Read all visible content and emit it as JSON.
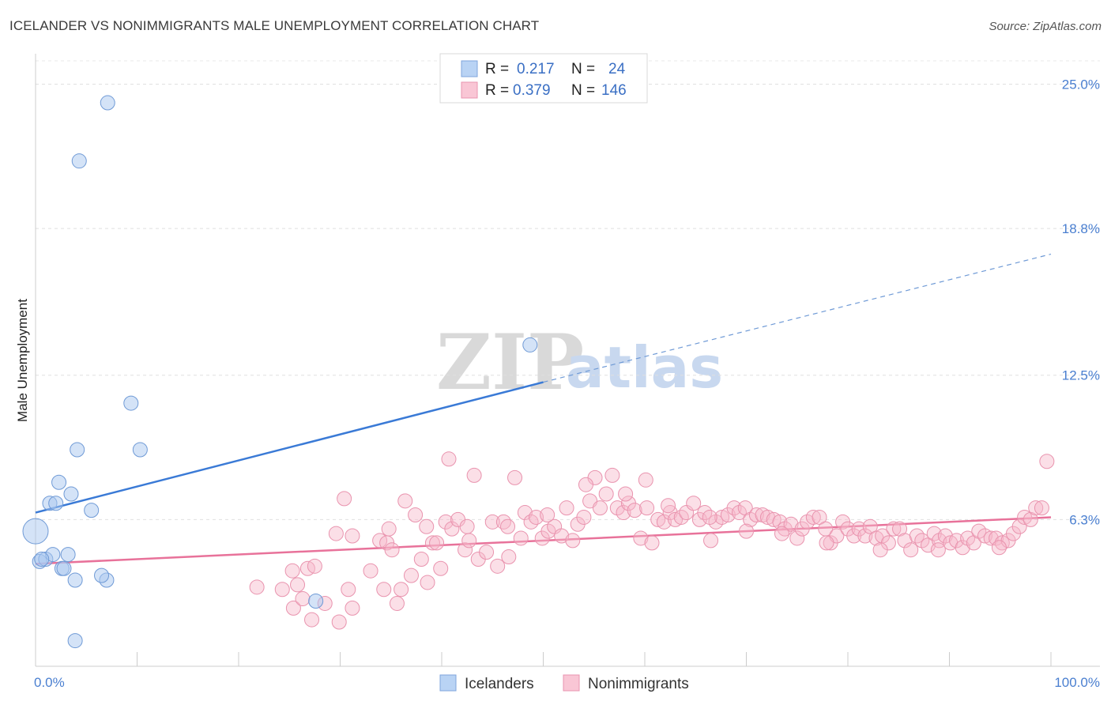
{
  "header": {
    "title": "ICELANDER VS NONIMMIGRANTS MALE UNEMPLOYMENT CORRELATION CHART",
    "source": "Source: ZipAtlas.com"
  },
  "watermark": {
    "zip": "ZIP",
    "atlas": "atlas"
  },
  "legend": {
    "rows": [
      {
        "r_label": "R =",
        "r_value": "0.217",
        "n_label": "N =",
        "n_value": "24",
        "color": "#a9c8f0"
      },
      {
        "r_label": "R =",
        "r_value": "0.379",
        "n_label": "N =",
        "n_value": "146",
        "color": "#f6b8ca"
      }
    ]
  },
  "bottom_legend": {
    "items": [
      {
        "label": "Icelanders",
        "color": "#a9c8f0"
      },
      {
        "label": "Nonimmigrants",
        "color": "#f6b8ca"
      }
    ]
  },
  "chart_data": {
    "type": "scatter",
    "xlabel": "",
    "ylabel": "Male Unemployment",
    "xlim": [
      0,
      100
    ],
    "ylim": [
      0,
      26
    ],
    "x_tick_labels": [
      "0.0%",
      "100.0%"
    ],
    "y_ticks": [
      {
        "value": 25.0,
        "label": "25.0%"
      },
      {
        "value": 18.8,
        "label": "18.8%"
      },
      {
        "value": 12.5,
        "label": "12.5%"
      },
      {
        "value": 6.3,
        "label": "6.3%"
      }
    ],
    "grid": true,
    "colors": {
      "icelanders": "#3a7ad6",
      "nonimmigrants": "#e8729a"
    },
    "series": [
      {
        "name": "Icelanders",
        "trend": {
          "x0": 0,
          "y0": 6.6,
          "x1": 50,
          "y1": 12.2,
          "x_end": 100,
          "y_end": 17.7
        },
        "points": [
          [
            7.1,
            24.2,
            9
          ],
          [
            4.3,
            21.7,
            9
          ],
          [
            0.0,
            5.8,
            16
          ],
          [
            0.4,
            4.5,
            9
          ],
          [
            1.0,
            4.6,
            9
          ],
          [
            1.7,
            4.8,
            9
          ],
          [
            2.6,
            4.2,
            9
          ],
          [
            2.8,
            4.2,
            9
          ],
          [
            3.2,
            4.8,
            9
          ],
          [
            3.9,
            3.7,
            9
          ],
          [
            7.0,
            3.7,
            9
          ],
          [
            6.5,
            3.9,
            9
          ],
          [
            2.3,
            7.9,
            9
          ],
          [
            1.4,
            7.0,
            9
          ],
          [
            2.0,
            7.0,
            9
          ],
          [
            3.5,
            7.4,
            9
          ],
          [
            5.5,
            6.7,
            9
          ],
          [
            4.1,
            9.3,
            9
          ],
          [
            10.3,
            9.3,
            9
          ],
          [
            9.4,
            11.3,
            9
          ],
          [
            48.7,
            13.8,
            9
          ],
          [
            27.6,
            2.8,
            9
          ],
          [
            3.9,
            1.1,
            9
          ],
          [
            0.6,
            4.6,
            9
          ]
        ]
      },
      {
        "name": "Nonimmigrants",
        "trend": {
          "x0": 0,
          "y0": 4.4,
          "x1": 100,
          "y1": 6.4
        },
        "points": [
          [
            21.8,
            3.4
          ],
          [
            24.3,
            3.3
          ],
          [
            25.4,
            2.5
          ],
          [
            25.8,
            3.5
          ],
          [
            26.3,
            2.9
          ],
          [
            26.8,
            4.2
          ],
          [
            27.2,
            2.0
          ],
          [
            28.5,
            2.7
          ],
          [
            29.6,
            5.7
          ],
          [
            29.9,
            1.9
          ],
          [
            30.4,
            7.2
          ],
          [
            30.8,
            3.3
          ],
          [
            31.2,
            2.5
          ],
          [
            33.0,
            4.1
          ],
          [
            33.9,
            5.4
          ],
          [
            34.3,
            3.3
          ],
          [
            34.6,
            5.3
          ],
          [
            35.1,
            5.0
          ],
          [
            35.6,
            2.7
          ],
          [
            36.0,
            3.3
          ],
          [
            36.4,
            7.1
          ],
          [
            37.0,
            3.9
          ],
          [
            37.4,
            6.5
          ],
          [
            38.0,
            4.6
          ],
          [
            38.6,
            3.6
          ],
          [
            39.1,
            5.3
          ],
          [
            39.5,
            5.3
          ],
          [
            39.9,
            4.2
          ],
          [
            40.4,
            6.2
          ],
          [
            41.0,
            5.9
          ],
          [
            41.6,
            6.3
          ],
          [
            42.3,
            5.0
          ],
          [
            42.7,
            5.4
          ],
          [
            43.6,
            4.6
          ],
          [
            44.4,
            4.9
          ],
          [
            45.0,
            6.2
          ],
          [
            45.5,
            4.3
          ],
          [
            46.1,
            6.2
          ],
          [
            46.6,
            4.7
          ],
          [
            47.2,
            8.1
          ],
          [
            47.8,
            5.5
          ],
          [
            48.2,
            6.6
          ],
          [
            48.8,
            6.2
          ],
          [
            49.3,
            6.4
          ],
          [
            49.9,
            5.5
          ],
          [
            50.5,
            5.8
          ],
          [
            51.1,
            6.0
          ],
          [
            51.8,
            5.6
          ],
          [
            52.3,
            6.8
          ],
          [
            52.9,
            5.4
          ],
          [
            53.4,
            6.1
          ],
          [
            54.0,
            6.4
          ],
          [
            54.6,
            7.1
          ],
          [
            55.1,
            8.1
          ],
          [
            55.6,
            6.8
          ],
          [
            56.2,
            7.4
          ],
          [
            56.8,
            8.2
          ],
          [
            57.3,
            6.8
          ],
          [
            57.9,
            6.6
          ],
          [
            58.4,
            7.0
          ],
          [
            59.0,
            6.7
          ],
          [
            59.6,
            5.5
          ],
          [
            60.2,
            6.8
          ],
          [
            60.7,
            5.3
          ],
          [
            61.3,
            6.3
          ],
          [
            61.9,
            6.2
          ],
          [
            62.5,
            6.6
          ],
          [
            63.0,
            6.3
          ],
          [
            63.6,
            6.4
          ],
          [
            64.1,
            6.6
          ],
          [
            64.8,
            7.0
          ],
          [
            65.4,
            6.3
          ],
          [
            65.9,
            6.6
          ],
          [
            66.5,
            5.4
          ],
          [
            67.0,
            6.2
          ],
          [
            67.6,
            6.4
          ],
          [
            68.2,
            6.5
          ],
          [
            68.8,
            6.8
          ],
          [
            69.3,
            6.6
          ],
          [
            69.9,
            6.8
          ],
          [
            70.4,
            6.3
          ],
          [
            71.0,
            6.5
          ],
          [
            71.6,
            6.5
          ],
          [
            72.1,
            6.4
          ],
          [
            72.7,
            6.3
          ],
          [
            73.3,
            6.2
          ],
          [
            73.8,
            5.9
          ],
          [
            74.4,
            6.1
          ],
          [
            75.0,
            5.5
          ],
          [
            75.5,
            5.9
          ],
          [
            76.0,
            6.2
          ],
          [
            76.6,
            6.4
          ],
          [
            77.2,
            6.4
          ],
          [
            77.8,
            5.9
          ],
          [
            78.3,
            5.3
          ],
          [
            78.9,
            5.6
          ],
          [
            79.5,
            6.2
          ],
          [
            80.0,
            5.9
          ],
          [
            80.6,
            5.6
          ],
          [
            81.1,
            5.9
          ],
          [
            81.7,
            5.6
          ],
          [
            82.2,
            6.0
          ],
          [
            82.8,
            5.5
          ],
          [
            83.4,
            5.6
          ],
          [
            84.0,
            5.3
          ],
          [
            84.5,
            5.9
          ],
          [
            85.1,
            5.9
          ],
          [
            85.6,
            5.4
          ],
          [
            86.2,
            5.0
          ],
          [
            86.8,
            5.6
          ],
          [
            87.3,
            5.4
          ],
          [
            87.9,
            5.2
          ],
          [
            88.5,
            5.7
          ],
          [
            89.0,
            5.4
          ],
          [
            89.6,
            5.6
          ],
          [
            90.1,
            5.3
          ],
          [
            90.7,
            5.4
          ],
          [
            91.3,
            5.1
          ],
          [
            91.8,
            5.5
          ],
          [
            92.4,
            5.3
          ],
          [
            92.9,
            5.8
          ],
          [
            93.5,
            5.6
          ],
          [
            94.1,
            5.5
          ],
          [
            94.6,
            5.5
          ],
          [
            95.2,
            5.3
          ],
          [
            95.8,
            5.4
          ],
          [
            96.3,
            5.7
          ],
          [
            96.9,
            6.0
          ],
          [
            97.4,
            6.4
          ],
          [
            98.0,
            6.3
          ],
          [
            98.5,
            6.8
          ],
          [
            99.1,
            6.8
          ],
          [
            99.6,
            8.8
          ],
          [
            40.7,
            8.9
          ],
          [
            43.2,
            8.2
          ],
          [
            60.1,
            8.0
          ],
          [
            94.9,
            5.1
          ],
          [
            88.9,
            5.0
          ],
          [
            83.2,
            5.0
          ],
          [
            77.9,
            5.3
          ],
          [
            73.5,
            5.7
          ],
          [
            70.0,
            5.8
          ],
          [
            66.4,
            6.4
          ],
          [
            62.3,
            6.9
          ],
          [
            58.1,
            7.4
          ],
          [
            54.2,
            7.8
          ],
          [
            50.4,
            6.5
          ],
          [
            46.5,
            6.0
          ],
          [
            42.5,
            6.0
          ],
          [
            38.5,
            6.0
          ],
          [
            34.8,
            5.9
          ],
          [
            31.2,
            5.6
          ],
          [
            27.5,
            4.3
          ],
          [
            25.3,
            4.1
          ]
        ]
      }
    ]
  }
}
